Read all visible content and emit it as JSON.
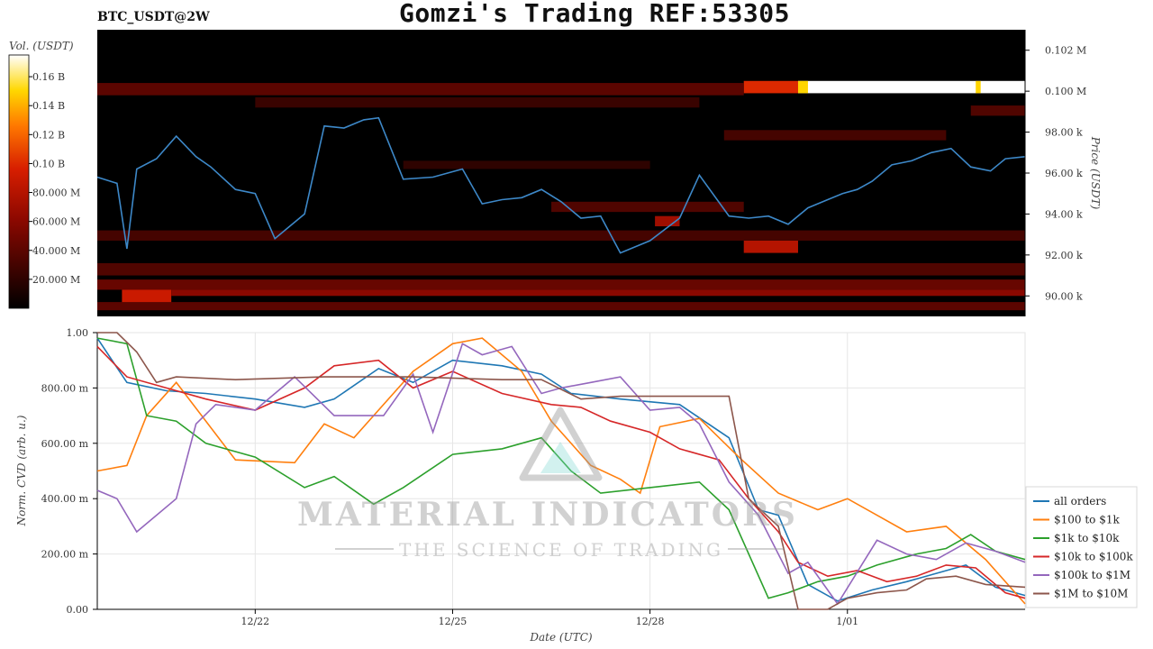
{
  "header": {
    "title": "Gomzi's Trading REF:53305",
    "symbol": "BTC_USDT@2W"
  },
  "colorbar": {
    "label": "Vol. (USDT)",
    "ticks": [
      "0.16 B",
      "0.14 B",
      "0.12 B",
      "0.10 B",
      "80.000 M",
      "60.000 M",
      "40.000 M",
      "20.000 M"
    ],
    "tick_values": [
      0.16,
      0.14,
      0.12,
      0.1,
      0.08,
      0.06,
      0.04,
      0.02
    ],
    "range": [
      0,
      0.175
    ]
  },
  "watermark": {
    "brand": "MATERIAL INDICATORS",
    "tagline": "THE SCIENCE OF TRADING"
  },
  "chart_data": [
    {
      "type": "heatmap",
      "title": "",
      "ylabel": "Price (USDT)",
      "ylim": [
        89000,
        103000
      ],
      "yticks": [
        102000,
        100000,
        98000,
        96000,
        94000,
        92000,
        90000
      ],
      "ytick_labels": [
        "0.102 M",
        "0.100 M",
        "98.00 k",
        "96.00 k",
        "94.00 k",
        "92.00 k",
        "90.00 k"
      ],
      "xlim": [
        -3.2,
        15.6
      ],
      "price_line": {
        "color": "#3d88c8",
        "x": [
          -3.2,
          -2.8,
          -2.6,
          -2.4,
          -2.0,
          -1.6,
          -1.2,
          -0.9,
          -0.4,
          0,
          0.4,
          0.8,
          1.0,
          1.4,
          1.8,
          2.2,
          2.5,
          3.0,
          3.6,
          4.2,
          4.6,
          5.0,
          5.4,
          5.8,
          6.2,
          6.6,
          7.0,
          7.4,
          8.0,
          8.6,
          9.0,
          9.6,
          10.0,
          10.4,
          10.8,
          11.2,
          11.6,
          11.9,
          12.2,
          12.5,
          12.9,
          13.3,
          13.7,
          14.1,
          14.5,
          14.9,
          15.2,
          15.6
        ],
        "y": [
          95800,
          95500,
          92300,
          96200,
          96700,
          97800,
          96800,
          96300,
          95200,
          95000,
          92800,
          93600,
          94000,
          98300,
          98200,
          98600,
          98700,
          95700,
          95800,
          96200,
          94500,
          94700,
          94800,
          95200,
          94600,
          93800,
          93900,
          92100,
          92700,
          93800,
          95900,
          93900,
          93800,
          93900,
          93500,
          94300,
          94700,
          95000,
          95200,
          95600,
          96400,
          96600,
          97000,
          97200,
          96300,
          96100,
          96700,
          96800
        ]
      },
      "bands": [
        {
          "y": [
            99900,
            100500
          ],
          "x": [
            9.9,
            11.0
          ],
          "level": 0.1
        },
        {
          "y": [
            99900,
            100500
          ],
          "x": [
            11.0,
            15.6
          ],
          "level": 0.175
        },
        {
          "y": [
            99900,
            100500
          ],
          "x": [
            11.0,
            11.2
          ],
          "level": 0.15
        },
        {
          "y": [
            99900,
            100500
          ],
          "x": [
            14.6,
            14.7
          ],
          "level": 0.15
        },
        {
          "y": [
            99800,
            100400
          ],
          "x": [
            -3.2,
            9.9
          ],
          "level": 0.04
        },
        {
          "y": [
            92100,
            92700
          ],
          "x": [
            9.9,
            11.0
          ],
          "level": 0.08
        },
        {
          "y": [
            93400,
            93900
          ],
          "x": [
            8.1,
            8.6
          ],
          "level": 0.07
        },
        {
          "y": [
            89600,
            90400
          ],
          "x": [
            -2.7,
            -1.7
          ],
          "level": 0.09
        },
        {
          "y": [
            90000,
            90300
          ],
          "x": [
            -1.7,
            15.6
          ],
          "level": 0.06
        },
        {
          "y": [
            90300,
            90800
          ],
          "x": [
            -3.2,
            15.6
          ],
          "level": 0.045
        },
        {
          "y": [
            89300,
            89700
          ],
          "x": [
            -3.2,
            15.6
          ],
          "level": 0.04
        },
        {
          "y": [
            91000,
            91600
          ],
          "x": [
            -3.2,
            15.6
          ],
          "level": 0.035
        },
        {
          "y": [
            92700,
            93200
          ],
          "x": [
            -3.2,
            15.6
          ],
          "level": 0.03
        },
        {
          "y": [
            94100,
            94600
          ],
          "x": [
            6.0,
            9.9
          ],
          "level": 0.035
        },
        {
          "y": [
            97600,
            98100
          ],
          "x": [
            9.5,
            14.0
          ],
          "level": 0.03
        },
        {
          "y": [
            99200,
            99700
          ],
          "x": [
            0.0,
            9.0
          ],
          "level": 0.025
        },
        {
          "y": [
            98800,
            99300
          ],
          "x": [
            14.5,
            15.6
          ],
          "level": 0.035
        },
        {
          "y": [
            96200,
            96600
          ],
          "x": [
            3.0,
            8.0
          ],
          "level": 0.02
        }
      ]
    },
    {
      "type": "line",
      "title": "",
      "xlabel": "Date (UTC)",
      "ylabel": "Norm. CVD (arb. u.)",
      "ylim": [
        0,
        1
      ],
      "xlim": [
        -3.2,
        15.6
      ],
      "xticks": [
        0,
        4,
        8,
        12
      ],
      "xtick_labels": [
        "12/22",
        "12/25",
        "12/28",
        "1/01"
      ],
      "yticks": [
        0,
        0.2,
        0.4,
        0.6,
        0.8,
        1.0
      ],
      "ytick_labels": [
        "0.00",
        "200.00 m",
        "400.00 m",
        "600.00 m",
        "800.00 m",
        "1.00"
      ],
      "legend_position": "bottom-right",
      "grid": true,
      "series": [
        {
          "name": "all orders",
          "color": "#1f77b4",
          "x": [
            -3.2,
            -2.6,
            -1.8,
            -1.0,
            0,
            1.0,
            1.6,
            2.5,
            3.2,
            4.0,
            5.0,
            5.8,
            6.4,
            7.4,
            8.6,
            9.6,
            10.2,
            10.6,
            11.2,
            11.8,
            12.5,
            13.2,
            13.8,
            14.4,
            15.0,
            15.6
          ],
          "y": [
            0.98,
            0.82,
            0.79,
            0.78,
            0.76,
            0.73,
            0.76,
            0.87,
            0.82,
            0.9,
            0.88,
            0.85,
            0.78,
            0.76,
            0.74,
            0.62,
            0.36,
            0.34,
            0.09,
            0.03,
            0.07,
            0.1,
            0.13,
            0.16,
            0.08,
            0.05
          ]
        },
        {
          "name": "$100 to $1k",
          "color": "#ff7f0e",
          "x": [
            -3.2,
            -2.6,
            -2.2,
            -1.6,
            -0.4,
            0.8,
            1.4,
            2.0,
            3.2,
            4.0,
            4.6,
            5.4,
            6.0,
            6.8,
            7.4,
            7.8,
            8.2,
            9.0,
            9.8,
            10.6,
            11.4,
            12.0,
            12.6,
            13.2,
            14.0,
            14.8,
            15.6
          ],
          "y": [
            0.5,
            0.52,
            0.7,
            0.82,
            0.54,
            0.53,
            0.67,
            0.62,
            0.86,
            0.96,
            0.98,
            0.86,
            0.68,
            0.52,
            0.47,
            0.42,
            0.66,
            0.69,
            0.55,
            0.42,
            0.36,
            0.4,
            0.34,
            0.28,
            0.3,
            0.18,
            0.02
          ]
        },
        {
          "name": "$1k to $10k",
          "color": "#2ca02c",
          "x": [
            -3.2,
            -2.6,
            -2.2,
            -1.6,
            -1.0,
            0,
            1.0,
            1.6,
            2.4,
            3.0,
            4.0,
            5.0,
            5.8,
            6.4,
            7.0,
            8.0,
            9.0,
            9.6,
            10.4,
            10.8,
            11.4,
            12.0,
            12.6,
            13.4,
            14.0,
            14.5,
            15.0,
            15.6
          ],
          "y": [
            0.98,
            0.96,
            0.7,
            0.68,
            0.6,
            0.55,
            0.44,
            0.48,
            0.38,
            0.44,
            0.56,
            0.58,
            0.62,
            0.5,
            0.42,
            0.44,
            0.46,
            0.36,
            0.04,
            0.06,
            0.1,
            0.12,
            0.16,
            0.2,
            0.22,
            0.27,
            0.21,
            0.18
          ]
        },
        {
          "name": "$10k to $100k",
          "color": "#d62728",
          "x": [
            -3.2,
            -2.6,
            -1.8,
            -1.0,
            0,
            1.0,
            1.6,
            2.5,
            3.2,
            4.0,
            5.0,
            6.0,
            6.6,
            7.2,
            8.0,
            8.6,
            9.4,
            10.0,
            10.6,
            11.0,
            11.6,
            12.2,
            12.8,
            13.4,
            14.0,
            14.6,
            15.2,
            15.6
          ],
          "y": [
            0.95,
            0.84,
            0.8,
            0.76,
            0.72,
            0.8,
            0.88,
            0.9,
            0.8,
            0.86,
            0.78,
            0.74,
            0.73,
            0.68,
            0.64,
            0.58,
            0.54,
            0.4,
            0.28,
            0.17,
            0.12,
            0.14,
            0.1,
            0.12,
            0.16,
            0.15,
            0.06,
            0.04
          ]
        },
        {
          "name": "$100k to $1M",
          "color": "#9467bd",
          "x": [
            -3.2,
            -2.8,
            -2.4,
            -1.6,
            -1.2,
            -0.8,
            0,
            0.8,
            1.6,
            2.6,
            3.2,
            3.6,
            4.2,
            4.6,
            5.2,
            5.8,
            6.2,
            6.8,
            7.4,
            8.0,
            8.6,
            9.0,
            9.6,
            10.2,
            10.8,
            11.2,
            11.8,
            12.6,
            13.2,
            13.8,
            14.4,
            15.0,
            15.6
          ],
          "y": [
            0.43,
            0.4,
            0.28,
            0.4,
            0.67,
            0.74,
            0.72,
            0.84,
            0.7,
            0.7,
            0.85,
            0.64,
            0.96,
            0.92,
            0.95,
            0.78,
            0.8,
            0.82,
            0.84,
            0.72,
            0.73,
            0.67,
            0.46,
            0.34,
            0.13,
            0.17,
            0.02,
            0.25,
            0.2,
            0.18,
            0.24,
            0.21,
            0.17
          ]
        },
        {
          "name": "$1M to $10M",
          "color": "#8c564b",
          "x": [
            -3.2,
            -2.8,
            -2.4,
            -2.0,
            -1.6,
            -0.4,
            1.4,
            3.2,
            5.0,
            5.8,
            6.6,
            7.4,
            8.4,
            9.6,
            10.0,
            10.6,
            11.0,
            11.6,
            12.0,
            12.6,
            13.2,
            13.6,
            14.2,
            14.8,
            15.6
          ],
          "y": [
            1.0,
            1.0,
            0.93,
            0.82,
            0.84,
            0.83,
            0.84,
            0.84,
            0.83,
            0.83,
            0.76,
            0.77,
            0.77,
            0.77,
            0.4,
            0.3,
            0.0,
            0.0,
            0.04,
            0.06,
            0.07,
            0.11,
            0.12,
            0.09,
            0.08
          ]
        }
      ]
    }
  ]
}
